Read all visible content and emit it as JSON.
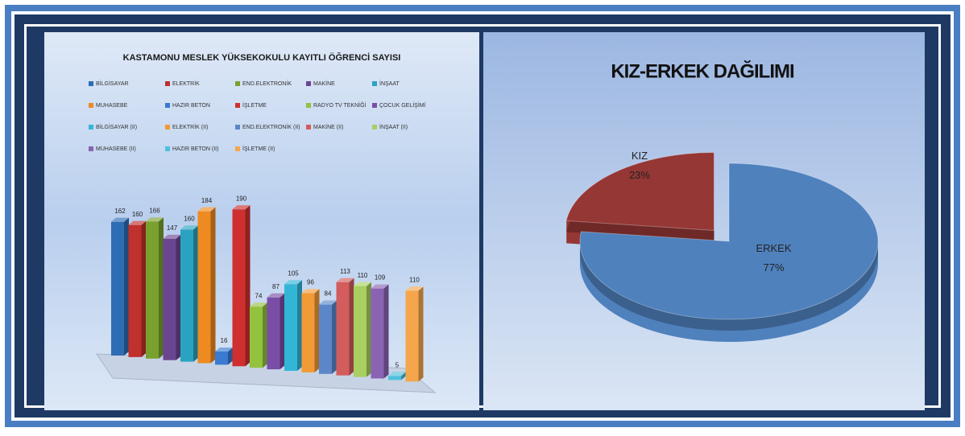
{
  "chart_data": [
    {
      "type": "bar3d",
      "title": "KASTAMONU MESLEK YÜKSEKOKULU KAYITLI ÖĞRENCİ SAYISI",
      "series": [
        {
          "name": "BİLGİSAYAR",
          "color": "#2e6db4",
          "values": [
            162
          ]
        },
        {
          "name": "ELEKTRİK",
          "color": "#c0302c",
          "values": [
            160
          ]
        },
        {
          "name": "END.ELEKTRONİK",
          "color": "#7aa12e",
          "values": [
            166
          ]
        },
        {
          "name": "MAKİNE",
          "color": "#6a4591",
          "values": [
            147
          ]
        },
        {
          "name": "İNŞAAT",
          "color": "#2aa3c1",
          "values": [
            160
          ]
        },
        {
          "name": "MUHASEBE",
          "color": "#ee8a22",
          "values": [
            184
          ]
        },
        {
          "name": "HAZIR BETON",
          "color": "#3a7ad0",
          "values": [
            16
          ]
        },
        {
          "name": "İŞLETME",
          "color": "#cf2f2f",
          "values": [
            190
          ]
        },
        {
          "name": "RADYO TV TEKNİĞİ",
          "color": "#92c23e",
          "values": [
            74
          ]
        },
        {
          "name": "ÇOCUK GELİŞİMİ",
          "color": "#7a4ea6",
          "values": [
            87
          ]
        },
        {
          "name": "BİLGİSAYAR (II)",
          "color": "#33b6d6",
          "values": [
            105
          ]
        },
        {
          "name": "ELEKTRİK (II)",
          "color": "#f29a36",
          "values": [
            96
          ]
        },
        {
          "name": "END.ELEKTRONİK (II)",
          "color": "#5b87c9",
          "values": [
            84
          ]
        },
        {
          "name": "MAKİNE (II)",
          "color": "#d35c5c",
          "values": [
            113
          ]
        },
        {
          "name": "İNŞAAT (II)",
          "color": "#a8cf5f",
          "values": [
            110
          ]
        },
        {
          "name": "MUHASEBE (II)",
          "color": "#8b63b3",
          "values": [
            109
          ]
        },
        {
          "name": "HAZIR BETON (II)",
          "color": "#4fc0dc",
          "values": [
            5
          ]
        },
        {
          "name": "İŞLETME (II)",
          "color": "#f5a64c",
          "values": [
            110
          ]
        }
      ]
    },
    {
      "type": "pie3d",
      "title": "KIZ-ERKEK DAĞILIMI",
      "categories": [
        "KIZ",
        "ERKEK"
      ],
      "values": [
        23,
        77
      ],
      "value_labels": [
        "23%",
        "77%"
      ],
      "colors": [
        "#953735",
        "#4f81bd"
      ]
    }
  ]
}
